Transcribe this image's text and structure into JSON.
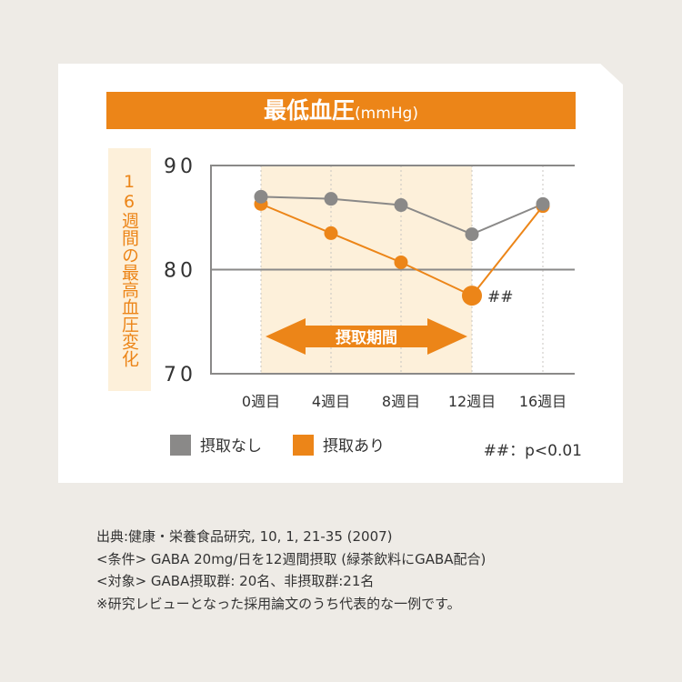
{
  "chart_data": {
    "type": "line",
    "title": "最低血圧",
    "title_unit": "(mmHg)",
    "ylabel": "16週間の最高血圧変化",
    "categories": [
      "0週目",
      "4週目",
      "8週目",
      "12週目",
      "16週目"
    ],
    "ylim": [
      70,
      90
    ],
    "yticks": [
      "90",
      "80",
      "70"
    ],
    "series": [
      {
        "name": "摂取なし",
        "color": "#8a8988",
        "values": [
          87.0,
          86.8,
          86.2,
          83.4,
          86.3
        ]
      },
      {
        "name": "摂取あり",
        "color": "#ec8518",
        "values": [
          86.3,
          83.5,
          80.7,
          77.5,
          86.1
        ]
      }
    ],
    "intake_period_label": "摂取期間",
    "significance_mark": "##",
    "significance_note": "##：p<0.01"
  },
  "notes": [
    "出典:健康・栄養食品研究, 10, 1, 21-35 (2007)",
    "<条件> GABA 20mg/日を12週間摂取 (緑茶飲料にGABA配合)",
    "<対象> GABA摂取群: 20名、非摂取群:21名",
    "※研究レビューとなった採用論文のうち代表的な一例です。"
  ]
}
